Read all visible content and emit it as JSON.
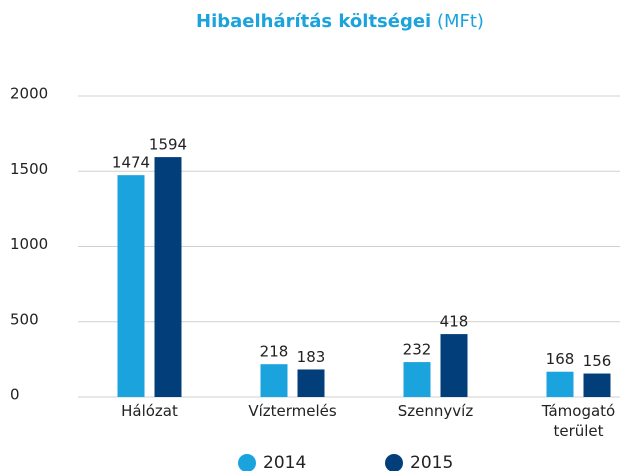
{
  "chart_data": {
    "type": "bar",
    "title": "Hibaelhárítás költségei",
    "unit": "(MFt)",
    "categories": [
      "Hálózat",
      "Víztermelés",
      "Szennyvíz",
      "Támogató terület"
    ],
    "series": [
      {
        "name": "2014",
        "color": "#1ba3de",
        "values": [
          1474,
          218,
          232,
          168
        ]
      },
      {
        "name": "2015",
        "color": "#023f7a",
        "values": [
          1594,
          183,
          418,
          156
        ]
      }
    ],
    "ylim": [
      0,
      2000
    ],
    "yticks": [
      0,
      500,
      1000,
      1500,
      2000
    ],
    "grid": true
  }
}
